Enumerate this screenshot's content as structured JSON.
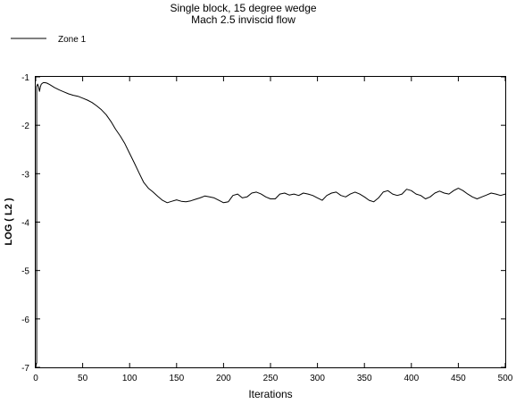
{
  "chart_data": {
    "type": "line",
    "title": "Single block, 15 degree wedge",
    "subtitle": "Mach 2.5 inviscid flow",
    "xlabel": "Iterations",
    "ylabel": "LOG ( L2 )",
    "xlim": [
      0,
      500
    ],
    "ylim": [
      -7,
      -1
    ],
    "xticks": [
      "0",
      "50",
      "100",
      "150",
      "200",
      "250",
      "300",
      "350",
      "400",
      "450",
      "500"
    ],
    "yticks": [
      "-1",
      "-2",
      "-3",
      "-4",
      "-5",
      "-6",
      "-7"
    ],
    "grid": false,
    "legend_position": "top-left",
    "series": [
      {
        "name": "Zone 1",
        "color": "#000000",
        "points": [
          [
            0,
            -7.0
          ],
          [
            1,
            -6.9
          ],
          [
            1,
            -1.2
          ],
          [
            2,
            -1.15
          ],
          [
            3,
            -1.2
          ],
          [
            4,
            -1.3
          ],
          [
            5,
            -1.2
          ],
          [
            6,
            -1.15
          ],
          [
            8,
            -1.12
          ],
          [
            10,
            -1.12
          ],
          [
            12,
            -1.13
          ],
          [
            15,
            -1.16
          ],
          [
            20,
            -1.22
          ],
          [
            25,
            -1.27
          ],
          [
            30,
            -1.31
          ],
          [
            35,
            -1.35
          ],
          [
            40,
            -1.38
          ],
          [
            45,
            -1.4
          ],
          [
            50,
            -1.44
          ],
          [
            55,
            -1.48
          ],
          [
            60,
            -1.53
          ],
          [
            65,
            -1.6
          ],
          [
            70,
            -1.68
          ],
          [
            75,
            -1.78
          ],
          [
            80,
            -1.92
          ],
          [
            85,
            -2.08
          ],
          [
            90,
            -2.22
          ],
          [
            95,
            -2.38
          ],
          [
            100,
            -2.58
          ],
          [
            105,
            -2.78
          ],
          [
            110,
            -2.98
          ],
          [
            115,
            -3.18
          ],
          [
            120,
            -3.3
          ],
          [
            125,
            -3.38
          ],
          [
            130,
            -3.47
          ],
          [
            135,
            -3.55
          ],
          [
            140,
            -3.6
          ],
          [
            145,
            -3.57
          ],
          [
            150,
            -3.54
          ],
          [
            155,
            -3.57
          ],
          [
            160,
            -3.58
          ],
          [
            165,
            -3.56
          ],
          [
            170,
            -3.53
          ],
          [
            175,
            -3.5
          ],
          [
            180,
            -3.46
          ],
          [
            185,
            -3.48
          ],
          [
            190,
            -3.5
          ],
          [
            195,
            -3.55
          ],
          [
            200,
            -3.6
          ],
          [
            205,
            -3.58
          ],
          [
            210,
            -3.45
          ],
          [
            215,
            -3.42
          ],
          [
            220,
            -3.5
          ],
          [
            225,
            -3.48
          ],
          [
            230,
            -3.4
          ],
          [
            235,
            -3.38
          ],
          [
            240,
            -3.42
          ],
          [
            245,
            -3.48
          ],
          [
            250,
            -3.52
          ],
          [
            255,
            -3.52
          ],
          [
            260,
            -3.42
          ],
          [
            265,
            -3.4
          ],
          [
            270,
            -3.44
          ],
          [
            275,
            -3.42
          ],
          [
            280,
            -3.45
          ],
          [
            285,
            -3.4
          ],
          [
            290,
            -3.42
          ],
          [
            295,
            -3.45
          ],
          [
            300,
            -3.5
          ],
          [
            305,
            -3.55
          ],
          [
            310,
            -3.45
          ],
          [
            315,
            -3.4
          ],
          [
            320,
            -3.38
          ],
          [
            325,
            -3.45
          ],
          [
            330,
            -3.48
          ],
          [
            335,
            -3.42
          ],
          [
            340,
            -3.38
          ],
          [
            345,
            -3.42
          ],
          [
            350,
            -3.48
          ],
          [
            355,
            -3.55
          ],
          [
            360,
            -3.58
          ],
          [
            365,
            -3.5
          ],
          [
            370,
            -3.38
          ],
          [
            375,
            -3.35
          ],
          [
            380,
            -3.42
          ],
          [
            385,
            -3.45
          ],
          [
            390,
            -3.42
          ],
          [
            395,
            -3.32
          ],
          [
            400,
            -3.35
          ],
          [
            405,
            -3.42
          ],
          [
            410,
            -3.45
          ],
          [
            415,
            -3.52
          ],
          [
            420,
            -3.48
          ],
          [
            425,
            -3.4
          ],
          [
            430,
            -3.36
          ],
          [
            435,
            -3.4
          ],
          [
            440,
            -3.42
          ],
          [
            445,
            -3.35
          ],
          [
            450,
            -3.3
          ],
          [
            455,
            -3.35
          ],
          [
            460,
            -3.42
          ],
          [
            465,
            -3.48
          ],
          [
            470,
            -3.52
          ],
          [
            475,
            -3.48
          ],
          [
            480,
            -3.44
          ],
          [
            485,
            -3.4
          ],
          [
            490,
            -3.42
          ],
          [
            495,
            -3.45
          ],
          [
            500,
            -3.42
          ]
        ]
      }
    ]
  }
}
